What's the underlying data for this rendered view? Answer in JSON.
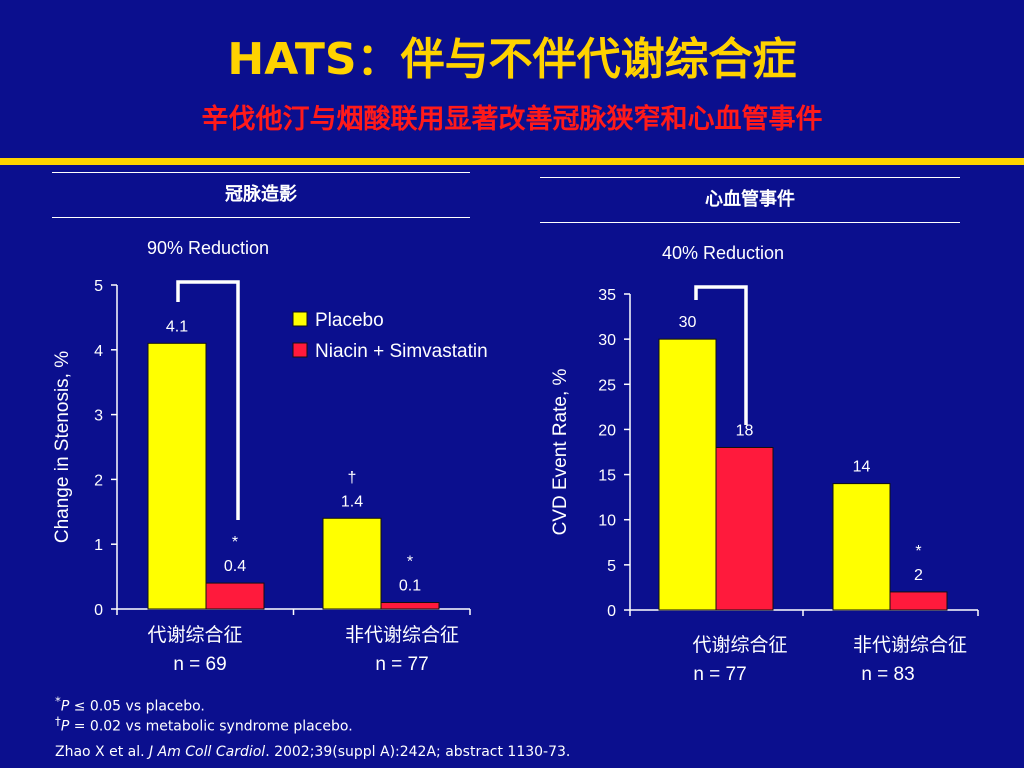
{
  "slide": {
    "title": "HATS：伴与不伴代谢综合症",
    "subtitle": "辛伐他汀与烟酸联用显著改善冠脉狭窄和心血管事件"
  },
  "colors": {
    "background": "#0b0f8e",
    "placebo": "#ffff00",
    "treatment": "#ff1a3c",
    "title": "#ffd200",
    "subtitle": "#ff1a1a",
    "rule": "#ffd400"
  },
  "legend": [
    "Placebo",
    "Niacin + Simvastatin"
  ],
  "footnotes": {
    "f1_mark": "*",
    "f1_p": "P",
    "f1_text": " ≤ 0.05 vs placebo.",
    "f2_mark": "†",
    "f2_p": "P",
    "f2_text": " = 0.02 vs metabolic syndrome placebo.",
    "ref_pre": "Zhao X et al. ",
    "ref_journal": "J Am Coll Cardiol",
    "ref_post": ". 2002;39(suppl A):242A; abstract 1130-73."
  },
  "chart_data": [
    {
      "type": "bar",
      "panel_title": "冠脉造影",
      "reduction_label": "90% Reduction",
      "ylabel": "Change in Stenosis, %",
      "ylim": [
        0,
        5
      ],
      "yticks": [
        "0",
        "1",
        "2",
        "3",
        "4",
        "5"
      ],
      "categories": [
        {
          "name": "代谢综合征",
          "n": "n = 69"
        },
        {
          "name": "非代谢综合征",
          "n": "n = 77"
        }
      ],
      "series": [
        {
          "name": "Placebo",
          "values": [
            4.1,
            1.4
          ],
          "labels": [
            "4.1",
            "1.4"
          ],
          "marks": [
            "",
            "†"
          ]
        },
        {
          "name": "Niacin + Simvastatin",
          "values": [
            0.4,
            0.1
          ],
          "labels": [
            "0.4",
            "0.1"
          ],
          "marks": [
            "*",
            "*"
          ]
        }
      ]
    },
    {
      "type": "bar",
      "panel_title": "心血管事件",
      "reduction_label": "40% Reduction",
      "ylabel": "CVD Event Rate, %",
      "ylim": [
        0,
        35
      ],
      "yticks": [
        "0",
        "5",
        "10",
        "15",
        "20",
        "25",
        "30",
        "35"
      ],
      "categories": [
        {
          "name": "代谢综合征",
          "n": "n = 77"
        },
        {
          "name": "非代谢综合征",
          "n": "n = 83"
        }
      ],
      "series": [
        {
          "name": "Placebo",
          "values": [
            30,
            14
          ],
          "labels": [
            "30",
            "14"
          ],
          "marks": [
            "",
            ""
          ]
        },
        {
          "name": "Niacin + Simvastatin",
          "values": [
            18,
            2
          ],
          "labels": [
            "18",
            "2"
          ],
          "marks": [
            "",
            "*"
          ]
        }
      ]
    }
  ]
}
